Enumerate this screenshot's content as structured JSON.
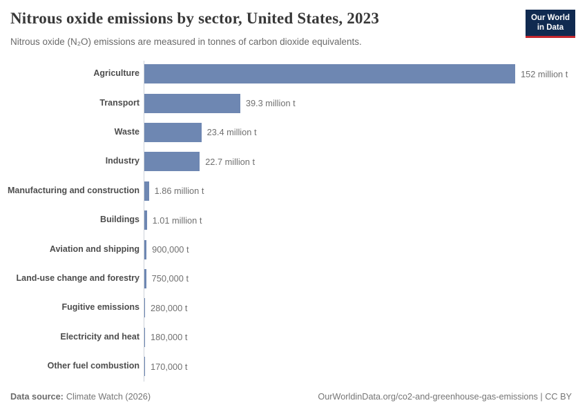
{
  "header": {
    "title": "Nitrous oxide emissions by sector, United States, 2023",
    "subtitle": "Nitrous oxide (N₂O) emissions are measured in tonnes of carbon dioxide equivalents.",
    "logo": {
      "line1": "Our World",
      "line2": "in Data",
      "bg_color": "#102a50",
      "accent_color": "#c5272d"
    }
  },
  "chart_data": {
    "type": "bar",
    "orientation": "horizontal",
    "title": "Nitrous oxide emissions by sector, United States, 2023",
    "subtitle": "Nitrous oxide (N₂O) emissions are measured in tonnes of carbon dioxide equivalents.",
    "unit": "tonnes of carbon dioxide equivalents",
    "categories": [
      "Agriculture",
      "Transport",
      "Waste",
      "Industry",
      "Manufacturing and construction",
      "Buildings",
      "Aviation and shipping",
      "Land-use change and forestry",
      "Fugitive emissions",
      "Electricity and heat",
      "Other fuel combustion"
    ],
    "values": [
      152000000,
      39300000,
      23400000,
      22700000,
      1860000,
      1010000,
      900000,
      750000,
      280000,
      180000,
      170000
    ],
    "value_labels": [
      "152 million t",
      "39.3 million t",
      "23.4 million t",
      "22.7 million t",
      "1.86 million t",
      "1.01 million t",
      "900,000 t",
      "750,000 t",
      "280,000 t",
      "180,000 t",
      "170,000 t"
    ],
    "xlim": [
      0,
      152000000
    ],
    "bar_color": "#6e87b2",
    "axis_color": "#cdd2d9",
    "grid": false,
    "legend": "none"
  },
  "footer": {
    "data_source_label": "Data source:",
    "data_source_value": "Climate Watch (2026)",
    "citation": "OurWorldinData.org/co2-and-greenhouse-gas-emissions | CC BY"
  }
}
